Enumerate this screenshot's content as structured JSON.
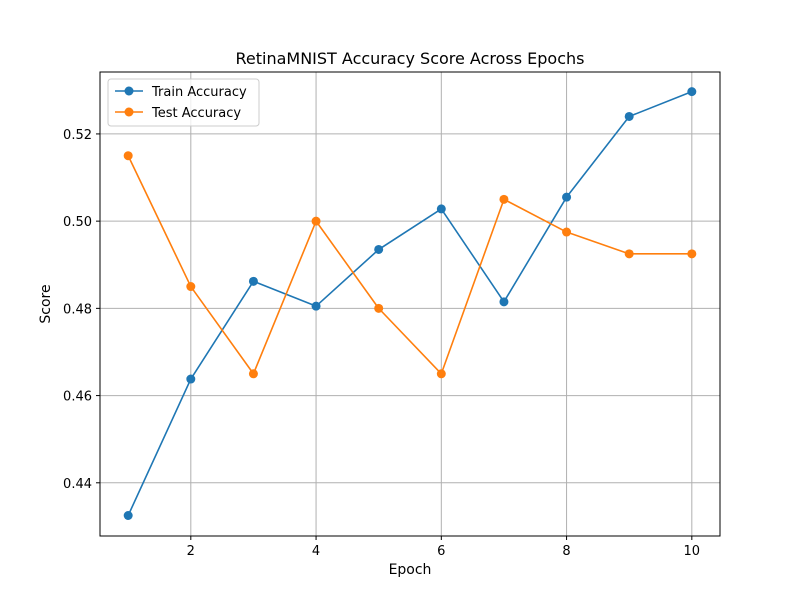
{
  "chart_data": {
    "type": "line",
    "title": "RetinaMNIST Accuracy Score Across Epochs",
    "xlabel": "Epoch",
    "ylabel": "Score",
    "xlim": [
      0.55,
      10.45
    ],
    "ylim": [
      0.4278,
      0.5342
    ],
    "xticks": [
      2,
      4,
      6,
      8,
      10
    ],
    "xtick_labels": [
      "2",
      "4",
      "6",
      "8",
      "10"
    ],
    "yticks": [
      0.44,
      0.46,
      0.48,
      0.5,
      0.52
    ],
    "ytick_labels": [
      "0.44",
      "0.46",
      "0.48",
      "0.50",
      "0.52"
    ],
    "grid": true,
    "legend_position": "upper-left",
    "x": [
      1,
      2,
      3,
      4,
      5,
      6,
      7,
      8,
      9,
      10
    ],
    "series": [
      {
        "name": "Train Accuracy",
        "color": "#1f77b4",
        "marker": "circle",
        "values": [
          0.4325,
          0.4638,
          0.4862,
          0.4805,
          0.4935,
          0.5028,
          0.4815,
          0.5055,
          0.524,
          0.5297
        ]
      },
      {
        "name": "Test Accuracy",
        "color": "#ff7f0e",
        "marker": "circle",
        "values": [
          0.515,
          0.485,
          0.465,
          0.5,
          0.48,
          0.465,
          0.505,
          0.4975,
          0.4925,
          0.4925
        ]
      }
    ]
  }
}
